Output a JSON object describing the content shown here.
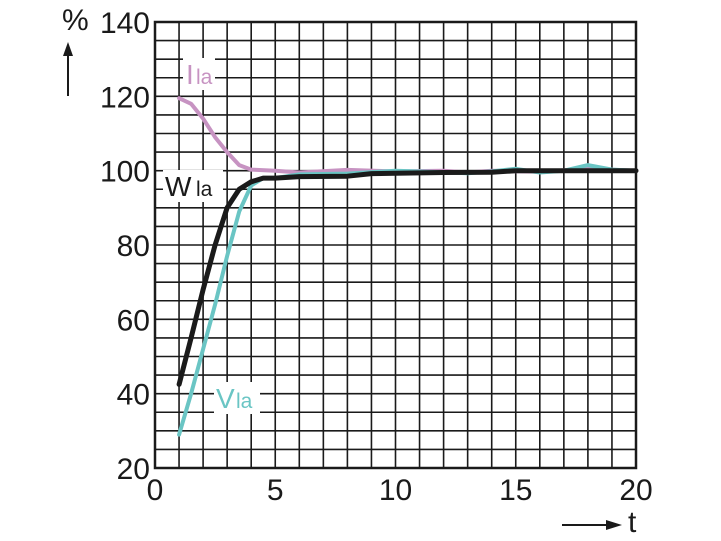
{
  "chart_data": {
    "type": "line",
    "title": "",
    "xlabel": "t",
    "ylabel": "%",
    "xlim": [
      0,
      20
    ],
    "ylim": [
      20,
      140
    ],
    "xticks": [
      0,
      5,
      10,
      15,
      20
    ],
    "yticks": [
      20,
      40,
      60,
      80,
      100,
      120,
      140
    ],
    "x_grid_step": 1,
    "y_grid_step": 5,
    "grid": true,
    "legend": "inline labels",
    "series": [
      {
        "name": "I",
        "name_sub": "la",
        "color": "#c793c2",
        "points": [
          [
            1,
            119.5
          ],
          [
            1.5,
            118
          ],
          [
            2,
            114
          ],
          [
            2.5,
            109
          ],
          [
            3,
            105
          ],
          [
            3.5,
            101.5
          ],
          [
            4,
            100.3
          ],
          [
            5,
            100
          ],
          [
            6,
            99.5
          ],
          [
            8,
            100.2
          ],
          [
            10,
            99.8
          ],
          [
            12,
            100
          ],
          [
            13,
            99.5
          ],
          [
            14,
            100
          ],
          [
            16,
            99.7
          ],
          [
            18,
            100.5
          ],
          [
            20,
            100
          ]
        ]
      },
      {
        "name": "V",
        "name_sub": "la",
        "color": "#6ac5c4",
        "points": [
          [
            1,
            29
          ],
          [
            1.5,
            40
          ],
          [
            2,
            52
          ],
          [
            2.5,
            64
          ],
          [
            3,
            77
          ],
          [
            3.5,
            89
          ],
          [
            4,
            96
          ],
          [
            4.5,
            98
          ],
          [
            5,
            98
          ],
          [
            6,
            99
          ],
          [
            8,
            99.2
          ],
          [
            10,
            100
          ],
          [
            12,
            99.6
          ],
          [
            13,
            99.3
          ],
          [
            14,
            99.8
          ],
          [
            15,
            100.5
          ],
          [
            16,
            99.5
          ],
          [
            17,
            100
          ],
          [
            18,
            101.5
          ],
          [
            19,
            100.3
          ],
          [
            20,
            100
          ]
        ]
      },
      {
        "name": "W",
        "name_sub": "la",
        "color": "#1a1a1a",
        "points": [
          [
            1,
            42.5
          ],
          [
            1.5,
            55
          ],
          [
            2,
            68
          ],
          [
            2.5,
            80
          ],
          [
            3,
            90
          ],
          [
            3.5,
            95
          ],
          [
            4,
            97
          ],
          [
            4.5,
            98
          ],
          [
            5,
            98
          ],
          [
            6,
            98.4
          ],
          [
            8,
            98.5
          ],
          [
            9,
            99.2
          ],
          [
            10,
            99.3
          ],
          [
            12,
            99.5
          ],
          [
            14,
            99.6
          ],
          [
            15,
            100
          ],
          [
            20,
            100
          ]
        ]
      }
    ]
  }
}
